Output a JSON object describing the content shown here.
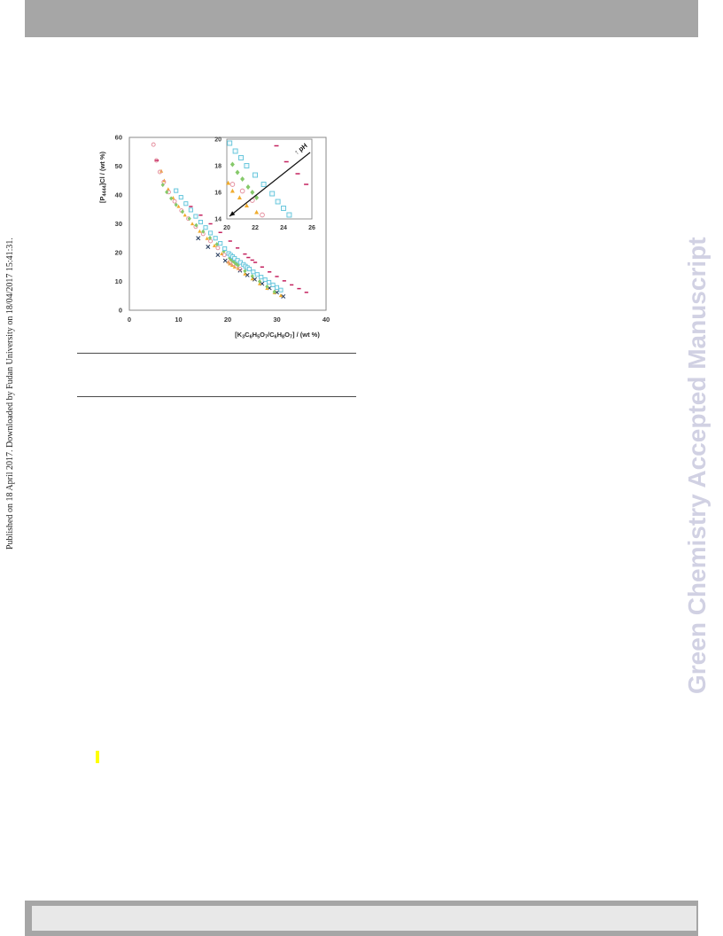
{
  "page": {
    "download_notice": "Published on 18 April 2017. Downloaded by Fudan University on 18/04/2017 15:41:31.",
    "watermark": "Green Chemistry Accepted Manuscript"
  },
  "colors": {
    "header_bar": "#a6a6a6",
    "footer_bar": "#a6a6a6",
    "footer_panel": "#e8e8e8",
    "watermark": "#d1d1e3",
    "highlight": "#ffff00",
    "rule": "#4a4a4a"
  },
  "chart_data": {
    "type": "scatter",
    "title": "",
    "xlabel": [
      {
        "text": "[K"
      },
      {
        "text": "3",
        "sub": true
      },
      {
        "text": "C"
      },
      {
        "text": "6",
        "sub": true
      },
      {
        "text": "H"
      },
      {
        "text": "5",
        "sub": true
      },
      {
        "text": "O"
      },
      {
        "text": "7",
        "sub": true
      },
      {
        "text": "/C"
      },
      {
        "text": "6",
        "sub": true
      },
      {
        "text": "H"
      },
      {
        "text": "8",
        "sub": true
      },
      {
        "text": "O"
      },
      {
        "text": "7",
        "sub": true
      },
      {
        "text": "] / (wt %)"
      }
    ],
    "ylabel": [
      {
        "text": "[P"
      },
      {
        "text": "4444",
        "sub": true
      },
      {
        "text": "]Cl / (wt %)"
      }
    ],
    "xlim": [
      0,
      40
    ],
    "ylim": [
      0,
      60
    ],
    "xticks": [
      0,
      10,
      20,
      30,
      40
    ],
    "yticks": [
      0,
      10,
      20,
      30,
      40,
      50,
      60
    ],
    "grid": false,
    "legend": "none",
    "series": [
      {
        "marker": "cross",
        "color": "#24395a",
        "points": [
          [
            14,
            25
          ],
          [
            16,
            22
          ],
          [
            18,
            19.2
          ],
          [
            19.5,
            17.2
          ],
          [
            22.5,
            13.8
          ],
          [
            24,
            12.2
          ],
          [
            25.5,
            10.7
          ],
          [
            27,
            9.2
          ],
          [
            28.5,
            7.7
          ],
          [
            30,
            6.2
          ],
          [
            31.3,
            4.8
          ]
        ]
      },
      {
        "marker": "triangle",
        "color": "#f0ac2e",
        "points": [
          [
            6.5,
            48.3
          ],
          [
            7.1,
            45
          ],
          [
            7.9,
            42
          ],
          [
            8.9,
            39
          ],
          [
            10,
            36
          ],
          [
            11.3,
            33
          ],
          [
            12.8,
            30
          ],
          [
            14.3,
            27.4
          ],
          [
            15.8,
            24.9
          ],
          [
            17.3,
            22.4
          ],
          [
            18.8,
            19.6
          ],
          [
            20.1,
            16.7
          ],
          [
            20.4,
            16.1
          ],
          [
            20.9,
            15.6
          ],
          [
            21.4,
            15.0
          ],
          [
            22.1,
            14.5
          ],
          [
            23.5,
            12.6
          ],
          [
            25,
            10.9
          ],
          [
            26.5,
            9.2
          ],
          [
            28,
            7.6
          ],
          [
            29.5,
            6.1
          ],
          [
            30.8,
            5.1
          ]
        ]
      },
      {
        "marker": "circle",
        "color": "#e38a9a",
        "points": [
          [
            4.9,
            57.5
          ],
          [
            5.5,
            52
          ],
          [
            6.2,
            48
          ],
          [
            7,
            44.5
          ],
          [
            8,
            41
          ],
          [
            9.2,
            37.8
          ],
          [
            10.6,
            34.6
          ],
          [
            12,
            31.8
          ],
          [
            13.5,
            29
          ],
          [
            15,
            26.5
          ],
          [
            16.5,
            24
          ],
          [
            18,
            21.6
          ],
          [
            19.3,
            19.2
          ],
          [
            20.4,
            16.6
          ],
          [
            21.1,
            16.1
          ],
          [
            21.8,
            15.4
          ],
          [
            22.5,
            14.3
          ]
        ]
      },
      {
        "marker": "diamond",
        "color": "#86c96a",
        "points": [
          [
            6.8,
            43.5
          ],
          [
            7.6,
            41
          ],
          [
            8.5,
            38.8
          ],
          [
            9.5,
            36.6
          ],
          [
            10.8,
            34.2
          ],
          [
            12.2,
            31.8
          ],
          [
            13.6,
            29.5
          ],
          [
            15,
            27.3
          ],
          [
            16.4,
            25.1
          ],
          [
            17.8,
            22.9
          ],
          [
            19.2,
            20.5
          ],
          [
            20.4,
            18.1
          ],
          [
            20.75,
            17.5
          ],
          [
            21.1,
            17.0
          ],
          [
            21.5,
            16.4
          ],
          [
            21.8,
            16.0
          ],
          [
            22.1,
            15.6
          ],
          [
            23.5,
            13.6
          ],
          [
            25,
            11.8
          ],
          [
            26.5,
            10
          ],
          [
            28,
            8.2
          ],
          [
            29.5,
            6.4
          ]
        ]
      },
      {
        "marker": "square",
        "color": "#5ec3da",
        "points": [
          [
            9.5,
            41.5
          ],
          [
            10.5,
            39.2
          ],
          [
            11.5,
            37
          ],
          [
            12.5,
            34.8
          ],
          [
            13.5,
            32.6
          ],
          [
            14.5,
            30.6
          ],
          [
            15.5,
            28.7
          ],
          [
            16.5,
            26.8
          ],
          [
            17.5,
            25
          ],
          [
            18.5,
            23.2
          ],
          [
            19.4,
            21.4
          ],
          [
            20.2,
            19.7
          ],
          [
            20.6,
            19.1
          ],
          [
            21.0,
            18.6
          ],
          [
            21.4,
            18.0
          ],
          [
            22.0,
            17.3
          ],
          [
            22.6,
            16.6
          ],
          [
            23.2,
            15.9
          ],
          [
            23.6,
            15.3
          ],
          [
            24.0,
            14.8
          ],
          [
            24.4,
            14.3
          ],
          [
            25.2,
            13.3
          ],
          [
            26,
            12.4
          ],
          [
            26.8,
            11.5
          ],
          [
            27.6,
            10.6
          ],
          [
            28.4,
            9.7
          ],
          [
            29.2,
            8.8
          ],
          [
            30,
            7.9
          ],
          [
            30.8,
            7
          ]
        ]
      },
      {
        "marker": "dash",
        "color": "#c4225f",
        "points": [
          [
            5.6,
            52
          ],
          [
            12.5,
            36
          ],
          [
            14.5,
            33
          ],
          [
            16.5,
            30
          ],
          [
            18.5,
            27
          ],
          [
            20.5,
            24
          ],
          [
            22,
            21.6
          ],
          [
            23.5,
            19.5
          ],
          [
            24.2,
            18.3
          ],
          [
            25,
            17.4
          ],
          [
            25.6,
            16.6
          ],
          [
            27,
            15
          ],
          [
            28.5,
            13.3
          ],
          [
            30,
            11.7
          ],
          [
            31.5,
            10.2
          ],
          [
            33,
            8.8
          ],
          [
            34.5,
            7.5
          ],
          [
            36,
            6.2
          ]
        ]
      }
    ],
    "inset": {
      "xlim": [
        20,
        26
      ],
      "ylim": [
        14,
        20
      ],
      "xticks": [
        20,
        22,
        24,
        26
      ],
      "yticks": [
        14,
        16,
        18,
        20
      ],
      "annotation": "↑ pH"
    }
  }
}
